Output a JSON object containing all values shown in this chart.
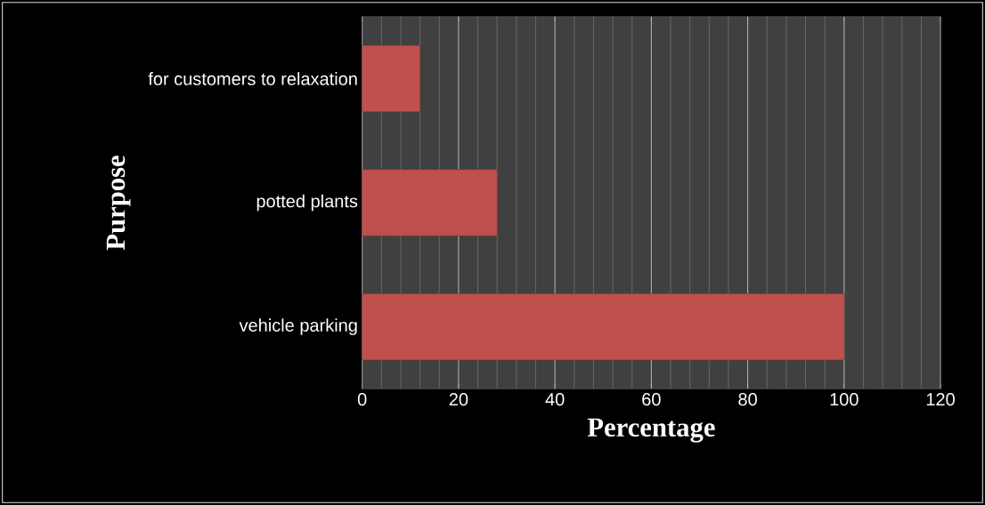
{
  "chart_data": {
    "type": "bar",
    "orientation": "horizontal",
    "categories": [
      "for customers to relaxation",
      "potted plants",
      "vehicle parking"
    ],
    "values": [
      12,
      28,
      100
    ],
    "color": "#c0504d",
    "xlabel": "Percentage",
    "ylabel": "Purpose",
    "xlim": [
      0,
      120
    ],
    "xticks": [
      0,
      20,
      40,
      60,
      80,
      100,
      120
    ],
    "grid": "x"
  }
}
